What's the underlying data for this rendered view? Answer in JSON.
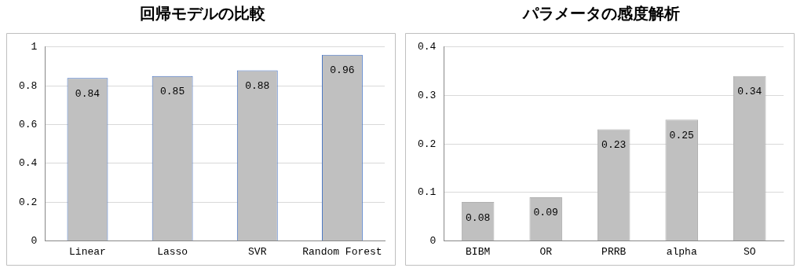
{
  "chart_data": [
    {
      "type": "bar",
      "title": "回帰モデルの比較",
      "categories": [
        "Linear",
        "Lasso",
        "SVR",
        "Random Forest"
      ],
      "series": [
        {
          "color": "#c0c0c0",
          "values": [
            0.84,
            0.85,
            0.88,
            0.96
          ]
        }
      ],
      "ylim": [
        0,
        1
      ],
      "yticks": [
        0,
        0.2,
        0.4,
        0.6,
        0.8,
        1
      ],
      "grid": "y",
      "legend": false,
      "data_labels": true
    },
    {
      "type": "bar",
      "title": "パラメータの感度解析",
      "categories": [
        "BIBM",
        "OR",
        "PRRB",
        "alpha",
        "SO"
      ],
      "series": [
        {
          "color": "#c0c0c0",
          "values": [
            0.08,
            0.09,
            0.23,
            0.25,
            0.34
          ]
        }
      ],
      "ylim": [
        0,
        0.4
      ],
      "yticks": [
        0,
        0.1,
        0.2,
        0.3,
        0.4
      ],
      "grid": "y",
      "legend": false,
      "data_labels": true
    }
  ]
}
